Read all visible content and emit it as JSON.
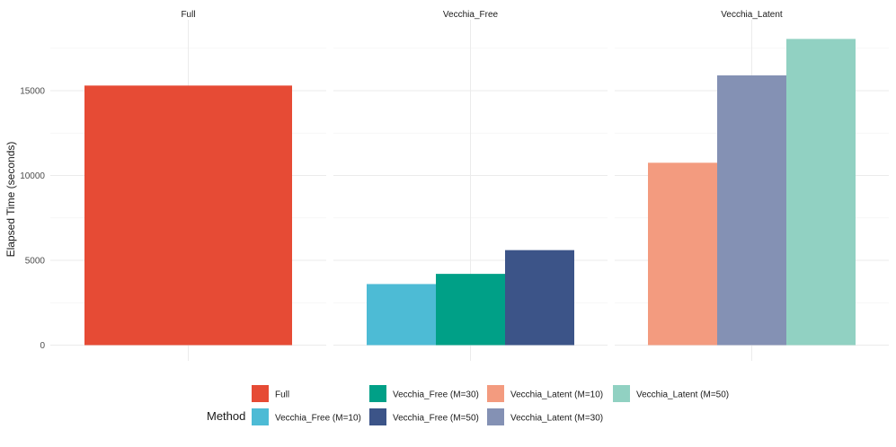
{
  "chart_data": {
    "type": "bar",
    "ylabel": "Elapsed Time (seconds)",
    "ylim": [
      0,
      18500
    ],
    "y_ticks": [
      0,
      5000,
      10000,
      15000
    ],
    "y_tick_labels": [
      "0",
      "5000",
      "10000",
      "15000"
    ],
    "grid": true,
    "legend_placement": "bottom",
    "legend_title": "Method",
    "facets": [
      {
        "title": "Full",
        "bars": [
          {
            "method": "Full",
            "value": 15300
          }
        ]
      },
      {
        "title": "Vecchia_Free",
        "bars": [
          {
            "method": "Vecchia_Free (M=10)",
            "value": 3600
          },
          {
            "method": "Vecchia_Free (M=30)",
            "value": 4200
          },
          {
            "method": "Vecchia_Free (M=50)",
            "value": 5600
          }
        ]
      },
      {
        "title": "Vecchia_Latent",
        "bars": [
          {
            "method": "Vecchia_Latent (M=10)",
            "value": 10750
          },
          {
            "method": "Vecchia_Latent (M=30)",
            "value": 15900
          },
          {
            "method": "Vecchia_Latent (M=50)",
            "value": 18050
          }
        ]
      }
    ],
    "legend": [
      {
        "label": "Full",
        "color": "#E64B35"
      },
      {
        "label": "Vecchia_Free (M=10)",
        "color": "#4DBBD5"
      },
      {
        "label": "Vecchia_Free (M=30)",
        "color": "#00A087"
      },
      {
        "label": "Vecchia_Free (M=50)",
        "color": "#3C5488"
      },
      {
        "label": "Vecchia_Latent (M=10)",
        "color": "#F39B7F"
      },
      {
        "label": "Vecchia_Latent (M=30)",
        "color": "#8491B4"
      },
      {
        "label": "Vecchia_Latent (M=50)",
        "color": "#91D1C2"
      }
    ]
  }
}
